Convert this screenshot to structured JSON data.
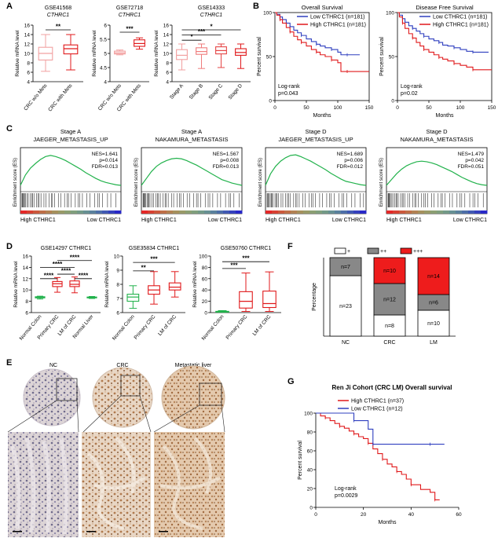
{
  "panels": {
    "A": "A",
    "B": "B",
    "C": "C",
    "D": "D",
    "E": "E",
    "F": "F",
    "G": "G"
  },
  "chart_data": [
    {
      "id": "A1",
      "type": "box",
      "title": "GSE41568",
      "subtitle": "CTHRC1",
      "ylabel": "Relative mRNA level",
      "ylim": [
        4,
        16
      ],
      "yticks": [
        4,
        6,
        8,
        10,
        12,
        14,
        16
      ],
      "categories": [
        "CRC w/o Mets",
        "CRC with Mets"
      ],
      "colors": [
        "#f2a0a0",
        "#e0191b"
      ],
      "boxes": [
        {
          "min": 6.2,
          "q1": 8.6,
          "median": 10.0,
          "q3": 11.3,
          "max": 14.0
        },
        {
          "min": 6.5,
          "q1": 9.9,
          "median": 11.0,
          "q3": 11.8,
          "max": 14.0
        }
      ],
      "sig": [
        {
          "from": 0,
          "to": 1,
          "level": 15.0,
          "label": "**"
        }
      ]
    },
    {
      "id": "A2",
      "type": "box",
      "title": "GSE72718",
      "subtitle": "CTHRC1",
      "ylabel": "Relative mRNA level",
      "ylim": [
        4.0,
        6.0
      ],
      "yticks": [
        4.0,
        4.5,
        5.0,
        5.5,
        6.0
      ],
      "categories": [
        "CRC w/o Mets",
        "CRC with Mets"
      ],
      "colors": [
        "#f2a0a0",
        "#e0191b"
      ],
      "boxes": [
        {
          "min": 4.95,
          "q1": 4.98,
          "median": 5.02,
          "q3": 5.08,
          "max": 5.12
        },
        {
          "min": 5.15,
          "q1": 5.25,
          "median": 5.35,
          "q3": 5.48,
          "max": 5.55
        }
      ],
      "sig": [
        {
          "from": 0,
          "to": 1,
          "level": 5.75,
          "label": "***"
        }
      ]
    },
    {
      "id": "A3",
      "type": "box",
      "title": "GSE14333",
      "subtitle": "CTHRC1",
      "ylabel": "Relative mRNA level",
      "ylim": [
        4,
        16
      ],
      "yticks": [
        4,
        6,
        8,
        10,
        12,
        14,
        16
      ],
      "categories": [
        "Stage A",
        "Stage B",
        "Stage C",
        "Stage D"
      ],
      "colors": [
        "#f2a0a0",
        "#ef7d7d",
        "#e54545",
        "#e0191b"
      ],
      "boxes": [
        {
          "min": 6.5,
          "q1": 8.7,
          "median": 9.6,
          "q3": 10.8,
          "max": 12.0
        },
        {
          "min": 6.8,
          "q1": 9.8,
          "median": 10.4,
          "q3": 11.2,
          "max": 12.0
        },
        {
          "min": 7.0,
          "q1": 9.9,
          "median": 10.6,
          "q3": 11.4,
          "max": 12.0
        },
        {
          "min": 6.8,
          "q1": 9.6,
          "median": 10.2,
          "q3": 11.0,
          "max": 12.0
        }
      ],
      "sig": [
        {
          "from": 0,
          "to": 1,
          "level": 12.8,
          "label": "*"
        },
        {
          "from": 0,
          "to": 2,
          "level": 13.9,
          "label": "***"
        },
        {
          "from": 0,
          "to": 3,
          "level": 15.0,
          "label": "*"
        }
      ]
    },
    {
      "id": "B1",
      "type": "line",
      "title": "Overall Survival",
      "xlabel": "Months",
      "ylabel": "Percent survival",
      "xlim": [
        0,
        150
      ],
      "ylim": [
        0,
        100
      ],
      "xticks": [
        0,
        50,
        100,
        150
      ],
      "yticks": [
        0,
        50,
        100
      ],
      "legend": [
        "Low CTHRC1 (n=181)",
        "High CTHRC1 (n=181)"
      ],
      "stat": [
        "Log-rank",
        "p=0.043"
      ],
      "series": [
        {
          "name": "Low",
          "color": "#2f3fbf",
          "x": [
            0,
            3,
            8,
            12,
            18,
            24,
            30,
            36,
            42,
            50,
            58,
            66,
            72,
            80,
            90,
            100,
            105,
            115,
            125,
            135
          ],
          "y": [
            100,
            98,
            95,
            92,
            88,
            84,
            80,
            77,
            74,
            70,
            67,
            64,
            62,
            60,
            58,
            55,
            52,
            52,
            52,
            52
          ]
        },
        {
          "name": "High",
          "color": "#e0191b",
          "x": [
            0,
            3,
            8,
            12,
            18,
            24,
            30,
            36,
            42,
            50,
            58,
            66,
            72,
            80,
            90,
            100,
            105,
            115,
            125,
            150
          ],
          "y": [
            100,
            97,
            92,
            88,
            83,
            78,
            73,
            69,
            66,
            62,
            58,
            55,
            52,
            50,
            46,
            43,
            33,
            33,
            33,
            33
          ]
        }
      ]
    },
    {
      "id": "B2",
      "type": "line",
      "title": "Disease Free Survival",
      "xlabel": "Months",
      "ylabel": "Percent survival",
      "xlim": [
        0,
        150
      ],
      "ylim": [
        0,
        100
      ],
      "xticks": [
        0,
        50,
        100,
        150
      ],
      "yticks": [
        0,
        50,
        100
      ],
      "legend": [
        "Low CTHRC1 (n=181)",
        "High CTHRC1 (n=181)"
      ],
      "stat": [
        "Log-rank",
        "p=0.02"
      ],
      "series": [
        {
          "name": "Low",
          "color": "#2f3fbf",
          "x": [
            0,
            3,
            8,
            12,
            18,
            24,
            30,
            36,
            42,
            50,
            58,
            66,
            72,
            80,
            90,
            100,
            110,
            120,
            130,
            145
          ],
          "y": [
            100,
            97,
            93,
            89,
            85,
            82,
            79,
            76,
            73,
            70,
            68,
            66,
            63,
            62,
            60,
            58,
            56,
            55,
            55,
            55
          ]
        },
        {
          "name": "High",
          "color": "#e0191b",
          "x": [
            0,
            3,
            8,
            12,
            18,
            24,
            30,
            36,
            42,
            50,
            58,
            66,
            72,
            80,
            90,
            100,
            110,
            120,
            130,
            150
          ],
          "y": [
            100,
            95,
            88,
            82,
            76,
            71,
            66,
            62,
            58,
            55,
            52,
            49,
            47,
            45,
            42,
            40,
            38,
            35,
            35,
            35
          ]
        }
      ]
    },
    {
      "id": "C",
      "type": "gsea",
      "ylabel": "Enrichment score (ES)",
      "xlabel_high": "High CTHRC1",
      "xlabel_low": "Low CTHRC1",
      "plots": [
        {
          "title": "Stage A",
          "set": "JAEGER_METASTASIS_UP",
          "stats": [
            "NES=1.641",
            "p=0.014",
            "FDR=0.013"
          ],
          "es": [
            0,
            0.18,
            0.3,
            0.38,
            0.45,
            0.5,
            0.52,
            0.5,
            0.47,
            0.43,
            0.38,
            0.33,
            0.28,
            0.22,
            0.17,
            0.12,
            0.08,
            0.05,
            0.03,
            0.01,
            0
          ]
        },
        {
          "title": "Stage A",
          "set": "NAKAMURA_METASTASIS",
          "stats": [
            "NES=1.567",
            "p=0.008",
            "FDR=0.013"
          ],
          "es": [
            0,
            0.12,
            0.24,
            0.33,
            0.39,
            0.43,
            0.46,
            0.47,
            0.46,
            0.43,
            0.39,
            0.35,
            0.3,
            0.25,
            0.2,
            0.15,
            0.1,
            0.07,
            0.04,
            0.02,
            0
          ]
        },
        {
          "title": "Stage D",
          "set": "JAEGER_METASTASIS_UP",
          "stats": [
            "NES=1.689",
            "p=0.006",
            "FDR=0.012"
          ],
          "es": [
            0,
            0.2,
            0.33,
            0.42,
            0.48,
            0.52,
            0.53,
            0.5,
            0.46,
            0.42,
            0.37,
            0.32,
            0.27,
            0.21,
            0.16,
            0.11,
            0.07,
            0.05,
            0.03,
            0.01,
            0
          ]
        },
        {
          "title": "Stage D",
          "set": "NAKAMURA_METASTASIS",
          "stats": [
            "NES=1.479",
            "p=0.042",
            "FDR=0.051"
          ],
          "es": [
            0,
            0.1,
            0.2,
            0.28,
            0.34,
            0.38,
            0.41,
            0.42,
            0.41,
            0.39,
            0.36,
            0.32,
            0.28,
            0.24,
            0.19,
            0.14,
            0.1,
            0.06,
            0.03,
            0.01,
            0
          ]
        }
      ]
    },
    {
      "id": "D1",
      "type": "box",
      "title": "GSE14297 CTHRC1",
      "ylabel": "Relative mRNA level",
      "ylim": [
        6,
        16
      ],
      "yticks": [
        6,
        8,
        10,
        12,
        14,
        16
      ],
      "categories": [
        "Normal Colon",
        "Primary CRC",
        "LM of CRC",
        "Normal Liver"
      ],
      "colors": [
        "#22b24c",
        "#e0191b",
        "#e0191b",
        "#22b24c"
      ],
      "boxes": [
        {
          "min": 8.4,
          "q1": 8.6,
          "median": 8.7,
          "q3": 8.8,
          "max": 8.9
        },
        {
          "min": 9.6,
          "q1": 10.6,
          "median": 11.1,
          "q3": 11.5,
          "max": 12.2
        },
        {
          "min": 9.5,
          "q1": 10.6,
          "median": 11.0,
          "q3": 11.6,
          "max": 12.3
        },
        {
          "min": 8.5,
          "q1": 8.6,
          "median": 8.7,
          "q3": 8.75,
          "max": 8.85
        }
      ],
      "sig": [
        {
          "from": 1,
          "to": 2,
          "level": 12.8,
          "label": "****"
        },
        {
          "from": 0,
          "to": 1,
          "level": 12.0,
          "label": "****"
        },
        {
          "from": 2,
          "to": 3,
          "level": 12.0,
          "label": "****"
        },
        {
          "from": 0,
          "to": 2,
          "level": 14.0,
          "label": "****"
        },
        {
          "from": 1,
          "to": 3,
          "level": 15.2,
          "label": "****"
        }
      ]
    },
    {
      "id": "D2",
      "type": "box",
      "title": "GSE35834 CTHRC1",
      "ylabel": "Relative mRNA level",
      "ylim": [
        6,
        10
      ],
      "yticks": [
        6,
        7,
        8,
        9,
        10
      ],
      "categories": [
        "Normal Colon",
        "Primary CRC",
        "LM of CRC"
      ],
      "colors": [
        "#22b24c",
        "#e0191b",
        "#e0191b"
      ],
      "boxes": [
        {
          "min": 6.3,
          "q1": 6.8,
          "median": 7.1,
          "q3": 7.3,
          "max": 7.9
        },
        {
          "min": 6.6,
          "q1": 7.3,
          "median": 7.6,
          "q3": 7.9,
          "max": 8.9
        },
        {
          "min": 7.1,
          "q1": 7.6,
          "median": 7.8,
          "q3": 8.1,
          "max": 8.9
        }
      ],
      "sig": [
        {
          "from": 0,
          "to": 1,
          "level": 8.95,
          "label": "**"
        },
        {
          "from": 0,
          "to": 2,
          "level": 9.55,
          "label": "***"
        }
      ]
    },
    {
      "id": "D3",
      "type": "box",
      "title": "GSE50760 CTHRC1",
      "ylabel": "Relative mRNA level",
      "ylim": [
        0,
        100
      ],
      "yticks": [
        0,
        20,
        40,
        60,
        80,
        100
      ],
      "categories": [
        "Normal Colon",
        "Primary CRC",
        "LM of CRC"
      ],
      "colors": [
        "#22b24c",
        "#e0191b",
        "#e0191b"
      ],
      "boxes": [
        {
          "min": 0.5,
          "q1": 1.0,
          "median": 1.5,
          "q3": 2.2,
          "max": 3.5
        },
        {
          "min": 2.0,
          "q1": 8.0,
          "median": 20.0,
          "q3": 37.0,
          "max": 70.0
        },
        {
          "min": 2.0,
          "q1": 9.0,
          "median": 16.0,
          "q3": 38.0,
          "max": 72.0
        }
      ],
      "sig": [
        {
          "from": 0,
          "to": 1,
          "level": 78,
          "label": "***"
        },
        {
          "from": 0,
          "to": 2,
          "level": 90,
          "label": "***"
        }
      ]
    },
    {
      "id": "F",
      "type": "stacked-bar",
      "ylabel": "Percentage",
      "ylim": [
        0,
        100
      ],
      "legend": [
        "+",
        "++",
        "+++"
      ],
      "legend_colors": [
        "#ffffff",
        "#888888",
        "#ee1c1c"
      ],
      "categories": [
        "NC",
        "CRC",
        "LM"
      ],
      "series": [
        {
          "name": "+",
          "values": [
            77,
            27,
            33
          ],
          "labels": [
            "n=23",
            "n=8",
            "n=10"
          ]
        },
        {
          "name": "++",
          "values": [
            23,
            40,
            20
          ],
          "labels": [
            "n=7",
            "n=12",
            "n=6"
          ]
        },
        {
          "name": "+++",
          "values": [
            0,
            33,
            47
          ],
          "labels": [
            "",
            "n=10",
            "n=14"
          ]
        }
      ]
    },
    {
      "id": "G",
      "type": "line",
      "title": "Ren Ji Cohort (CRC LM) Overall survival",
      "xlabel": "Months",
      "ylabel": "Percent survival",
      "xlim": [
        0,
        60
      ],
      "ylim": [
        0,
        100
      ],
      "xticks": [
        0,
        20,
        40,
        60
      ],
      "yticks": [
        0,
        20,
        40,
        60,
        80,
        100
      ],
      "legend": [
        "High CTHRC1 (n=37)",
        "Low CTHRC1 (n=12)"
      ],
      "stat": [
        "Log-rank",
        "p=0.0029"
      ],
      "series": [
        {
          "name": "High",
          "color": "#e0191b",
          "x": [
            0,
            2,
            4,
            6,
            8,
            10,
            12,
            14,
            16,
            18,
            20,
            22,
            24,
            26,
            28,
            30,
            32,
            34,
            36,
            38,
            40,
            44,
            48,
            50,
            52
          ],
          "y": [
            100,
            97,
            95,
            92,
            89,
            86,
            84,
            81,
            78,
            75,
            73,
            68,
            62,
            57,
            51,
            46,
            43,
            38,
            35,
            30,
            24,
            19,
            16,
            8,
            8
          ]
        },
        {
          "name": "Low",
          "color": "#2f3fbf",
          "x": [
            0,
            8,
            16,
            20,
            22,
            24,
            30,
            40,
            48,
            54
          ],
          "y": [
            100,
            100,
            92,
            92,
            83,
            67,
            67,
            67,
            67,
            67
          ]
        }
      ]
    }
  ],
  "panel_e": {
    "columns": [
      "NC",
      "CRC",
      "Metastatic liver"
    ],
    "icons": [
      "nc-tissue-image",
      "crc-tissue-image",
      "liver-tissue-image"
    ]
  }
}
